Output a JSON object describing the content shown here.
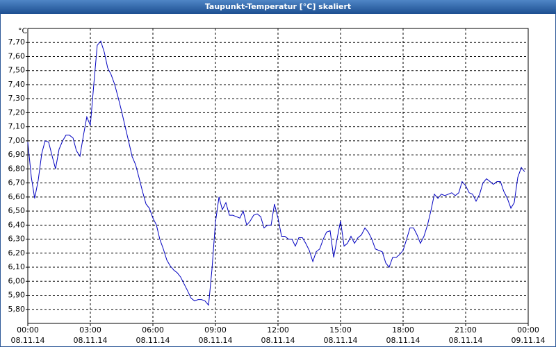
{
  "chart_data": {
    "type": "line",
    "title": "Taupunkt-Temperatur [°C] skaliert",
    "y_unit": "°C",
    "color": "#0000c0",
    "grid": true,
    "xlim": [
      0,
      24
    ],
    "xticks": [
      {
        "value": 0,
        "label": "00:00",
        "date": "08.11.14"
      },
      {
        "value": 3,
        "label": "03:00",
        "date": "08.11.14"
      },
      {
        "value": 6,
        "label": "06:00",
        "date": "08.11.14"
      },
      {
        "value": 9,
        "label": "09:00",
        "date": "08.11.14"
      },
      {
        "value": 12,
        "label": "12:00",
        "date": "08.11.14"
      },
      {
        "value": 15,
        "label": "15:00",
        "date": "08.11.14"
      },
      {
        "value": 18,
        "label": "18:00",
        "date": "08.11.14"
      },
      {
        "value": 21,
        "label": "21:00",
        "date": "08.11.14"
      },
      {
        "value": 24,
        "label": "00:00",
        "date": "09.11.14"
      }
    ],
    "ylim": [
      5.7,
      7.8
    ],
    "yticks": [
      {
        "value": 5.8,
        "label": "5,80"
      },
      {
        "value": 5.9,
        "label": "5,90"
      },
      {
        "value": 6.0,
        "label": "6,00"
      },
      {
        "value": 6.1,
        "label": "6,10"
      },
      {
        "value": 6.2,
        "label": "6,20"
      },
      {
        "value": 6.3,
        "label": "6,30"
      },
      {
        "value": 6.4,
        "label": "6,40"
      },
      {
        "value": 6.5,
        "label": "6,50"
      },
      {
        "value": 6.6,
        "label": "6,60"
      },
      {
        "value": 6.7,
        "label": "6,70"
      },
      {
        "value": 6.8,
        "label": "6,80"
      },
      {
        "value": 6.9,
        "label": "6,90"
      },
      {
        "value": 7.0,
        "label": "7,00"
      },
      {
        "value": 7.1,
        "label": "7,10"
      },
      {
        "value": 7.2,
        "label": "7,20"
      },
      {
        "value": 7.3,
        "label": "7,30"
      },
      {
        "value": 7.4,
        "label": "7,40"
      },
      {
        "value": 7.5,
        "label": "7,50"
      },
      {
        "value": 7.6,
        "label": "7,60"
      },
      {
        "value": 7.7,
        "label": "7,70"
      }
    ],
    "x": [
      0,
      0.17,
      0.33,
      0.5,
      0.67,
      0.83,
      1,
      1.17,
      1.33,
      1.5,
      1.67,
      1.83,
      2,
      2.17,
      2.33,
      2.5,
      2.67,
      2.83,
      3,
      3.17,
      3.33,
      3.5,
      3.67,
      3.83,
      4,
      4.17,
      4.33,
      4.5,
      4.67,
      4.83,
      5,
      5.17,
      5.33,
      5.5,
      5.67,
      5.83,
      6,
      6.17,
      6.33,
      6.5,
      6.67,
      6.83,
      7,
      7.17,
      7.33,
      7.5,
      7.67,
      7.83,
      8,
      8.17,
      8.33,
      8.5,
      8.67,
      8.83,
      9,
      9.17,
      9.33,
      9.5,
      9.67,
      9.83,
      10,
      10.17,
      10.33,
      10.5,
      10.67,
      10.83,
      11,
      11.17,
      11.33,
      11.5,
      11.67,
      11.83,
      12,
      12.17,
      12.33,
      12.5,
      12.67,
      12.83,
      13,
      13.17,
      13.33,
      13.5,
      13.67,
      13.83,
      14,
      14.17,
      14.33,
      14.5,
      14.67,
      14.83,
      15,
      15.17,
      15.33,
      15.5,
      15.67,
      15.83,
      16,
      16.17,
      16.33,
      16.5,
      16.67,
      16.83,
      17,
      17.17,
      17.33,
      17.5,
      17.67,
      17.83,
      18,
      18.17,
      18.33,
      18.5,
      18.67,
      18.83,
      19,
      19.17,
      19.33,
      19.5,
      19.67,
      19.83,
      20,
      20.17,
      20.33,
      20.5,
      20.67,
      20.83,
      21,
      21.17,
      21.33,
      21.5,
      21.67,
      21.83,
      22,
      22.17,
      22.33,
      22.5,
      22.67,
      22.83,
      23,
      23.17,
      23.33,
      23.5,
      23.67,
      23.83
    ],
    "values": [
      6.99,
      6.74,
      6.59,
      6.72,
      6.91,
      7.0,
      6.99,
      6.89,
      6.8,
      6.94,
      7.0,
      7.04,
      7.04,
      7.02,
      6.93,
      6.89,
      7.04,
      7.17,
      7.11,
      7.41,
      7.68,
      7.71,
      7.63,
      7.52,
      7.47,
      7.4,
      7.31,
      7.21,
      7.1,
      7.0,
      6.89,
      6.83,
      6.74,
      6.64,
      6.55,
      6.52,
      6.45,
      6.4,
      6.3,
      6.23,
      6.15,
      6.11,
      6.08,
      6.06,
      6.03,
      5.98,
      5.93,
      5.88,
      5.86,
      5.87,
      5.87,
      5.86,
      5.83,
      6.08,
      6.42,
      6.6,
      6.51,
      6.56,
      6.47,
      6.47,
      6.46,
      6.45,
      6.5,
      6.4,
      6.43,
      6.47,
      6.48,
      6.46,
      6.38,
      6.4,
      6.4,
      6.55,
      6.45,
      6.32,
      6.32,
      6.3,
      6.3,
      6.25,
      6.31,
      6.31,
      6.27,
      6.22,
      6.14,
      6.21,
      6.23,
      6.3,
      6.35,
      6.36,
      6.17,
      6.3,
      6.43,
      6.25,
      6.27,
      6.32,
      6.27,
      6.31,
      6.33,
      6.38,
      6.35,
      6.3,
      6.23,
      6.22,
      6.21,
      6.13,
      6.1,
      6.17,
      6.17,
      6.19,
      6.22,
      6.3,
      6.38,
      6.38,
      6.33,
      6.27,
      6.32,
      6.4,
      6.5,
      6.62,
      6.59,
      6.62,
      6.61,
      6.62,
      6.63,
      6.61,
      6.63,
      6.71,
      6.68,
      6.63,
      6.62,
      6.57,
      6.62,
      6.7,
      6.73,
      6.71,
      6.69,
      6.71,
      6.71,
      6.64,
      6.59,
      6.52,
      6.56,
      6.74,
      6.81,
      6.78
    ]
  }
}
